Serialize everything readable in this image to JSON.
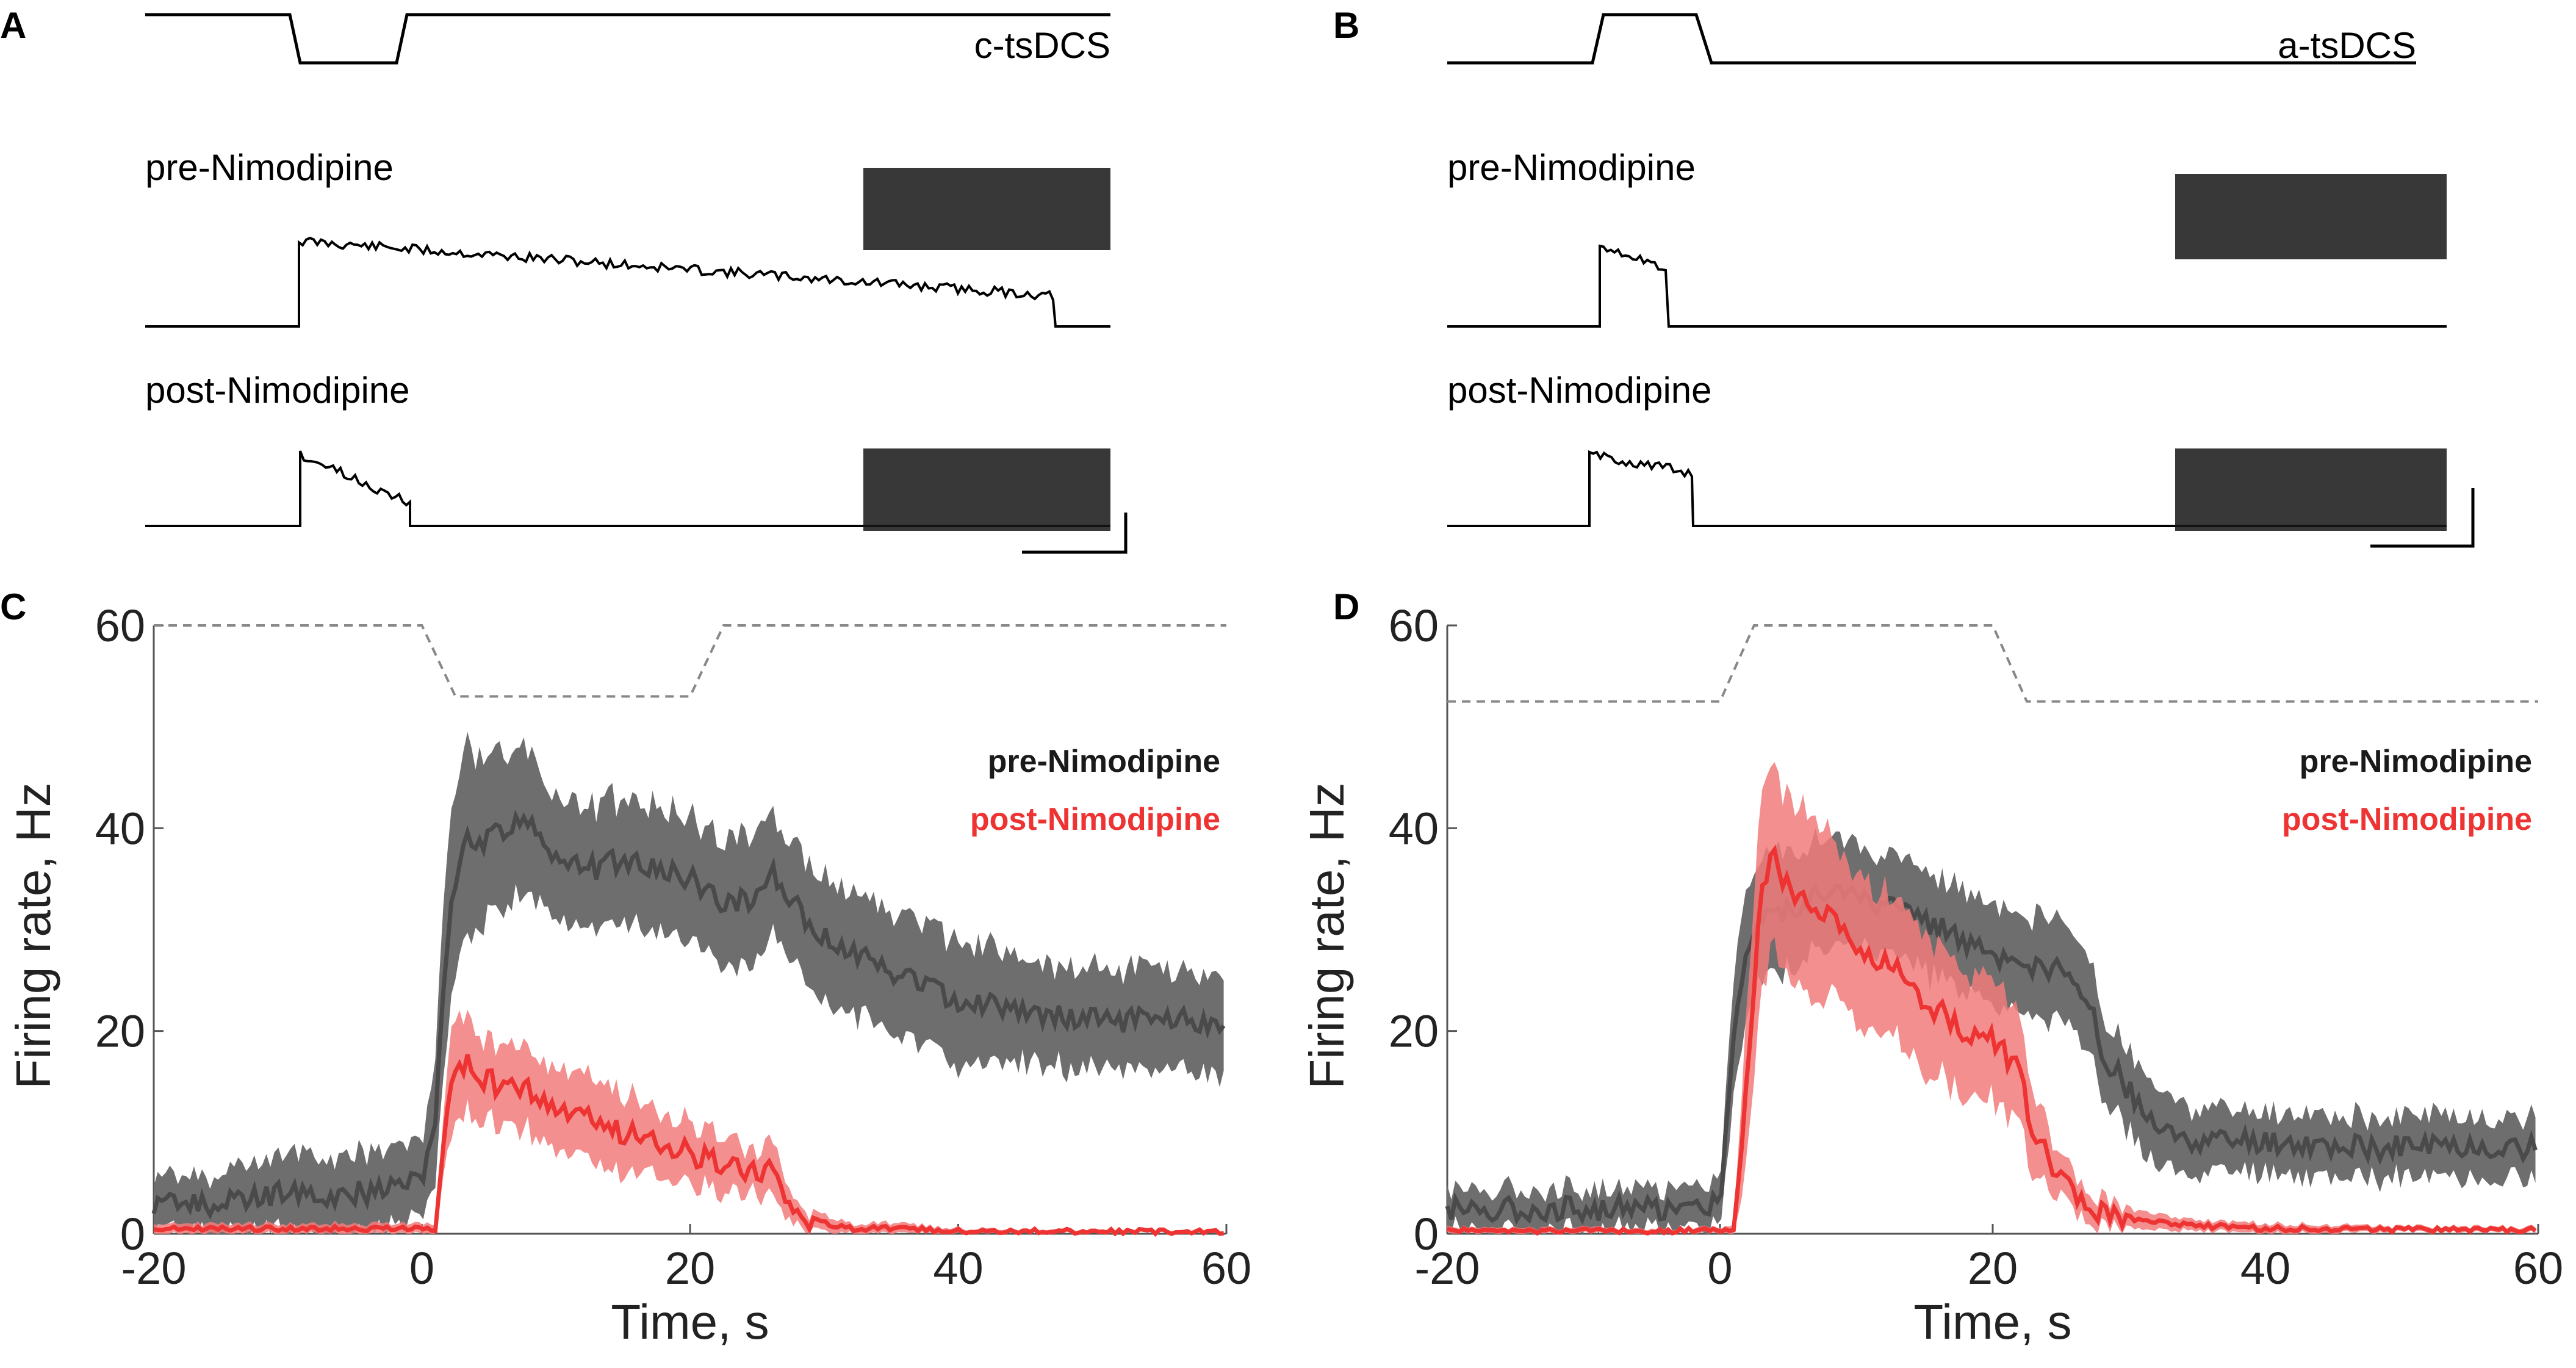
{
  "panels": {
    "A": {
      "letter": "A",
      "stimulus_label": "c-tsDCS",
      "pre_label": "pre-Nimodipine",
      "post_label": "post-Nimodipine"
    },
    "B": {
      "letter": "B",
      "stimulus_label": "a-tsDCS",
      "pre_label": "pre-Nimodipine",
      "post_label": "post-Nimodipine"
    },
    "C": {
      "letter": "C"
    },
    "D": {
      "letter": "D"
    }
  },
  "colors": {
    "pre": "#4a4a4a",
    "pre_band": "#6e6e6e",
    "post": "#ee3333",
    "post_band": "#f27b7b",
    "stim": "#888888"
  },
  "chart_data": [
    {
      "panel": "C",
      "type": "line",
      "title": "",
      "xlabel": "Time, s",
      "ylabel": "Firing rate, Hz",
      "xlim": [
        -20,
        60
      ],
      "ylim": [
        0,
        60
      ],
      "xticks": [
        -20,
        0,
        20,
        40,
        60
      ],
      "yticks": [
        0,
        20,
        40,
        60
      ],
      "xtick_labels": [
        "-20",
        "0",
        "20",
        "40",
        "60"
      ],
      "ytick_labels": [
        "0",
        "20",
        "40",
        "60"
      ],
      "stimulus": {
        "x": [
          -20,
          0,
          2.5,
          20,
          22.5,
          60
        ],
        "y": [
          60,
          60,
          53,
          53,
          60,
          60
        ],
        "style": "dashed"
      },
      "legend": [
        "pre-Nimodipine",
        "post-Nimodipine"
      ],
      "legend_position": "top-right",
      "series": [
        {
          "name": "pre-Nimodipine",
          "x": [
            -20,
            -15,
            -10,
            -5,
            0,
            1,
            2,
            3,
            5,
            8,
            10,
            13,
            15,
            18,
            20,
            22,
            25,
            26,
            28,
            30,
            35,
            40,
            45,
            50,
            55,
            60
          ],
          "y": [
            3,
            3,
            4,
            4,
            5,
            12,
            30,
            39,
            39,
            41,
            37,
            36,
            37,
            36,
            35,
            33,
            33,
            36,
            32,
            29,
            26,
            23,
            22,
            21,
            21,
            21
          ],
          "band": [
            2.5,
            3,
            4,
            4,
            4,
            6,
            10,
            9,
            8,
            7,
            6,
            6,
            6,
            6,
            6,
            6,
            6,
            6,
            6,
            6,
            6,
            6,
            5,
            5,
            5,
            5
          ]
        },
        {
          "name": "post-Nimodipine",
          "x": [
            -20,
            -15,
            -10,
            -5,
            0,
            1,
            2,
            3,
            5,
            8,
            10,
            13,
            15,
            18,
            20,
            22,
            25,
            26,
            27,
            28,
            30,
            32,
            35,
            40,
            50,
            60
          ],
          "y": [
            0.5,
            0.5,
            0.5,
            0.5,
            0.5,
            0.5,
            13,
            17,
            15,
            14,
            12,
            11,
            10,
            9,
            8,
            7,
            6,
            7,
            4,
            2,
            1,
            0.5,
            0.5,
            0.3,
            0.2,
            0.2
          ],
          "band": [
            0.5,
            0.5,
            0.5,
            0.5,
            0.5,
            0.5,
            5,
            5,
            4,
            4,
            4,
            4,
            4,
            3,
            3,
            3,
            2,
            3,
            2,
            1,
            0.8,
            0.5,
            0.5,
            0.3,
            0.2,
            0.2
          ]
        }
      ]
    },
    {
      "panel": "D",
      "type": "line",
      "title": "",
      "xlabel": "Time, s",
      "ylabel": "Firing rate, Hz",
      "xlim": [
        -20,
        60
      ],
      "ylim": [
        0,
        60
      ],
      "xticks": [
        -20,
        0,
        20,
        40,
        60
      ],
      "yticks": [
        0,
        20,
        40,
        60
      ],
      "xtick_labels": [
        "-20",
        "0",
        "20",
        "40",
        "60"
      ],
      "ytick_labels": [
        "0",
        "20",
        "40",
        "60"
      ],
      "stimulus": {
        "x": [
          -20,
          0,
          2.5,
          20,
          22.5,
          60
        ],
        "y": [
          52.5,
          52.5,
          60,
          60,
          52.5,
          52.5
        ],
        "style": "dashed"
      },
      "legend": [
        "pre-Nimodipine",
        "post-Nimodipine"
      ],
      "legend_position": "top-right",
      "series": [
        {
          "name": "pre-Nimodipine",
          "x": [
            -20,
            -15,
            -10,
            -5,
            0,
            1,
            2,
            3,
            5,
            8,
            10,
            13,
            15,
            18,
            20,
            22,
            25,
            27,
            28,
            30,
            32,
            35,
            40,
            45,
            50,
            55,
            60
          ],
          "y": [
            2.5,
            2.5,
            2.5,
            2.5,
            3,
            20,
            28,
            31,
            32,
            34,
            33,
            32,
            31,
            29,
            27,
            26,
            26,
            23,
            18,
            14,
            10,
            9,
            9,
            8.5,
            8.5,
            8.5,
            8.5
          ],
          "band": [
            2,
            2,
            2,
            2,
            2,
            6,
            6,
            6,
            6,
            5,
            5,
            5,
            5,
            5,
            5,
            5,
            5,
            5,
            4,
            4,
            4,
            3,
            3,
            3,
            3,
            3,
            3
          ]
        },
        {
          "name": "post-Nimodipine",
          "x": [
            -20,
            -15,
            -10,
            -5,
            0,
            1,
            2,
            3,
            4,
            5,
            8,
            10,
            13,
            15,
            18,
            20,
            22,
            23,
            25,
            27,
            30,
            35,
            40,
            45,
            50,
            55,
            60
          ],
          "y": [
            0.3,
            0.3,
            0.3,
            0.3,
            0.3,
            0.5,
            15,
            35,
            37,
            34,
            31,
            28,
            26,
            23,
            20,
            19,
            16,
            10,
            5,
            2.5,
            1.5,
            0.8,
            0.5,
            0.5,
            0.4,
            0.4,
            0.4
          ],
          "band": [
            0.3,
            0.3,
            0.3,
            0.3,
            0.3,
            0.5,
            8,
            10,
            9,
            9,
            8,
            7,
            7,
            7,
            6,
            6,
            5,
            4,
            2,
            1.5,
            1,
            0.5,
            0.5,
            0.4,
            0.3,
            0.3,
            0.3
          ]
        }
      ]
    }
  ]
}
